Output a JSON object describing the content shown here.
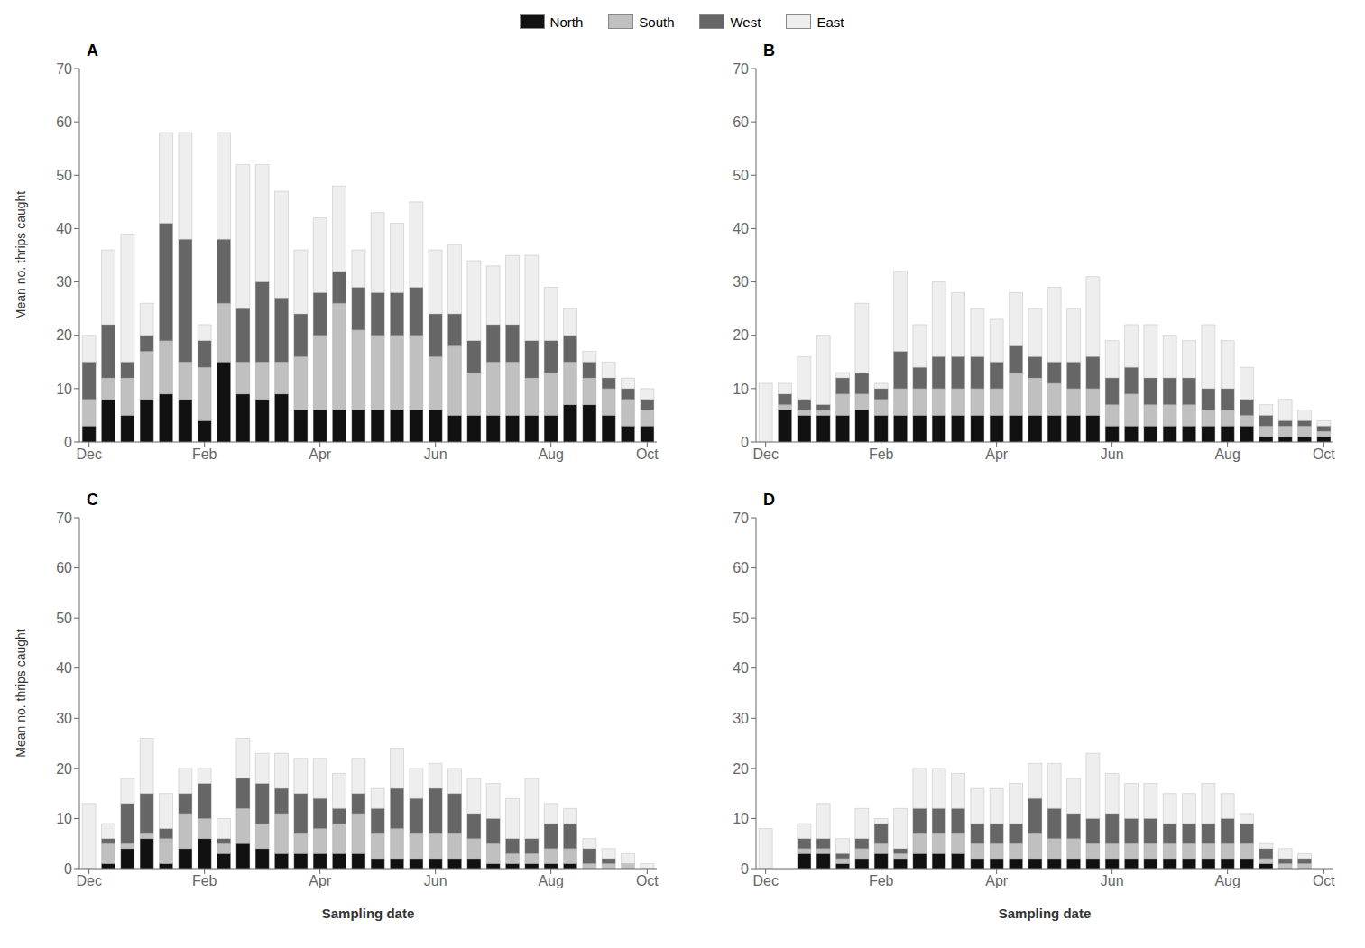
{
  "chart_data": [
    {
      "type": "bar",
      "stacked": true,
      "grid": false,
      "legend": "upper center",
      "annotations": [
        "A"
      ],
      "ylabel": "Mean no. thrips caught",
      "categories": [
        "Dec",
        null,
        null,
        null,
        null,
        null,
        "Feb",
        null,
        null,
        null,
        null,
        null,
        "Apr",
        null,
        null,
        null,
        null,
        null,
        "Jun",
        null,
        null,
        null,
        null,
        null,
        "Aug",
        null,
        null,
        null,
        null,
        "Oct"
      ],
      "ylim": [
        0,
        70
      ],
      "yticks": [
        0,
        10,
        20,
        30,
        40,
        50,
        60,
        70
      ],
      "series": [
        {
          "name": "North",
          "color": "#111111",
          "values": [
            3,
            8,
            5,
            8,
            9,
            8,
            4,
            15,
            9,
            8,
            9,
            6,
            6,
            6,
            6,
            6,
            6,
            6,
            6,
            5,
            5,
            5,
            5,
            5,
            5,
            7,
            7,
            5,
            3,
            3
          ]
        },
        {
          "name": "South",
          "color": "#c0c0c0",
          "values": [
            5,
            4,
            7,
            9,
            10,
            7,
            10,
            11,
            6,
            7,
            6,
            10,
            14,
            20,
            15,
            14,
            14,
            14,
            10,
            13,
            8,
            10,
            10,
            7,
            8,
            8,
            5,
            5,
            5,
            3
          ]
        },
        {
          "name": "West",
          "color": "#666666",
          "values": [
            7,
            10,
            3,
            3,
            22,
            23,
            5,
            12,
            10,
            15,
            12,
            8,
            8,
            6,
            8,
            8,
            8,
            9,
            8,
            6,
            6,
            7,
            7,
            7,
            6,
            5,
            3,
            2,
            2,
            2
          ]
        },
        {
          "name": "East",
          "color": "#eeeeee",
          "values": [
            5,
            14,
            24,
            6,
            17,
            20,
            3,
            20,
            27,
            22,
            20,
            12,
            14,
            16,
            7,
            15,
            13,
            16,
            12,
            13,
            15,
            11,
            13,
            16,
            10,
            5,
            2,
            3,
            2,
            2
          ]
        }
      ]
    },
    {
      "type": "bar",
      "stacked": true,
      "grid": false,
      "annotations": [
        "B"
      ],
      "categories": [
        "Dec",
        null,
        null,
        null,
        null,
        null,
        "Feb",
        null,
        null,
        null,
        null,
        null,
        "Apr",
        null,
        null,
        null,
        null,
        null,
        "Jun",
        null,
        null,
        null,
        null,
        null,
        "Aug",
        null,
        null,
        null,
        null,
        "Oct"
      ],
      "ylim": [
        0,
        70
      ],
      "yticks": [
        0,
        10,
        20,
        30,
        40,
        50,
        60,
        70
      ],
      "series": [
        {
          "name": "North",
          "color": "#111111",
          "values": [
            0,
            6,
            5,
            5,
            5,
            6,
            5,
            5,
            5,
            5,
            5,
            5,
            5,
            5,
            5,
            5,
            5,
            5,
            3,
            3,
            3,
            3,
            3,
            3,
            3,
            3,
            1,
            1,
            1,
            1
          ]
        },
        {
          "name": "South",
          "color": "#c0c0c0",
          "values": [
            0,
            1,
            1,
            1,
            4,
            3,
            3,
            5,
            5,
            5,
            5,
            5,
            5,
            8,
            7,
            6,
            5,
            5,
            4,
            6,
            4,
            4,
            4,
            3,
            3,
            2,
            2,
            2,
            2,
            1
          ]
        },
        {
          "name": "West",
          "color": "#666666",
          "values": [
            0,
            2,
            2,
            1,
            3,
            4,
            2,
            7,
            4,
            6,
            6,
            6,
            5,
            5,
            4,
            4,
            5,
            6,
            5,
            5,
            5,
            5,
            5,
            4,
            4,
            3,
            2,
            1,
            1,
            1
          ]
        },
        {
          "name": "East",
          "color": "#eeeeee",
          "values": [
            11,
            2,
            8,
            13,
            1,
            13,
            1,
            15,
            8,
            14,
            12,
            9,
            8,
            10,
            9,
            14,
            10,
            15,
            7,
            8,
            10,
            8,
            7,
            12,
            9,
            6,
            2,
            4,
            2,
            1
          ]
        }
      ]
    },
    {
      "type": "bar",
      "stacked": true,
      "grid": false,
      "annotations": [
        "C"
      ],
      "ylabel": "Mean no. thrips caught",
      "xlabel": "Sampling date",
      "categories": [
        "Dec",
        null,
        null,
        null,
        null,
        null,
        "Feb",
        null,
        null,
        null,
        null,
        null,
        "Apr",
        null,
        null,
        null,
        null,
        null,
        "Jun",
        null,
        null,
        null,
        null,
        null,
        "Aug",
        null,
        null,
        null,
        null,
        "Oct"
      ],
      "ylim": [
        0,
        70
      ],
      "yticks": [
        0,
        10,
        20,
        30,
        40,
        50,
        60,
        70
      ],
      "series": [
        {
          "name": "North",
          "color": "#111111",
          "values": [
            0,
            1,
            4,
            6,
            1,
            4,
            6,
            3,
            5,
            4,
            3,
            3,
            3,
            3,
            3,
            2,
            2,
            2,
            2,
            2,
            2,
            1,
            1,
            1,
            1,
            1,
            0,
            0,
            0,
            0
          ]
        },
        {
          "name": "South",
          "color": "#c0c0c0",
          "values": [
            0,
            4,
            1,
            1,
            5,
            7,
            4,
            2,
            7,
            5,
            8,
            4,
            5,
            6,
            8,
            5,
            6,
            5,
            5,
            5,
            4,
            4,
            2,
            2,
            3,
            3,
            1,
            1,
            1,
            0
          ]
        },
        {
          "name": "West",
          "color": "#666666",
          "values": [
            0,
            1,
            8,
            8,
            2,
            4,
            7,
            1,
            6,
            8,
            5,
            8,
            6,
            3,
            4,
            5,
            8,
            7,
            9,
            8,
            5,
            5,
            3,
            3,
            5,
            5,
            3,
            1,
            0,
            0
          ]
        },
        {
          "name": "East",
          "color": "#eeeeee",
          "values": [
            13,
            3,
            5,
            11,
            7,
            5,
            3,
            4,
            8,
            6,
            7,
            7,
            8,
            7,
            7,
            4,
            8,
            6,
            5,
            5,
            7,
            7,
            8,
            12,
            4,
            3,
            2,
            2,
            2,
            1
          ]
        }
      ]
    },
    {
      "type": "bar",
      "stacked": true,
      "grid": false,
      "annotations": [
        "D"
      ],
      "xlabel": "Sampling date",
      "categories": [
        "Dec",
        null,
        null,
        null,
        null,
        null,
        "Feb",
        null,
        null,
        null,
        null,
        null,
        "Apr",
        null,
        null,
        null,
        null,
        null,
        "Jun",
        null,
        null,
        null,
        null,
        null,
        "Aug",
        null,
        null,
        null,
        null,
        "Oct"
      ],
      "ylim": [
        0,
        70
      ],
      "yticks": [
        0,
        10,
        20,
        30,
        40,
        50,
        60,
        70
      ],
      "series": [
        {
          "name": "North",
          "color": "#111111",
          "values": [
            0,
            0,
            3,
            3,
            1,
            2,
            3,
            2,
            3,
            3,
            3,
            2,
            2,
            2,
            2,
            2,
            2,
            2,
            2,
            2,
            2,
            2,
            2,
            2,
            2,
            2,
            1,
            0,
            0,
            0
          ]
        },
        {
          "name": "South",
          "color": "#c0c0c0",
          "values": [
            0,
            0,
            1,
            1,
            1,
            2,
            2,
            1,
            4,
            4,
            4,
            3,
            3,
            3,
            5,
            4,
            4,
            3,
            3,
            3,
            3,
            3,
            3,
            3,
            3,
            3,
            1,
            1,
            1,
            0
          ]
        },
        {
          "name": "West",
          "color": "#666666",
          "values": [
            0,
            0,
            2,
            2,
            1,
            2,
            4,
            1,
            5,
            5,
            5,
            4,
            4,
            4,
            7,
            6,
            5,
            5,
            6,
            5,
            5,
            4,
            4,
            4,
            5,
            4,
            2,
            1,
            1,
            0
          ]
        },
        {
          "name": "East",
          "color": "#eeeeee",
          "values": [
            8,
            0,
            3,
            7,
            3,
            6,
            1,
            8,
            8,
            8,
            7,
            7,
            7,
            8,
            7,
            9,
            7,
            13,
            8,
            7,
            7,
            6,
            6,
            8,
            5,
            2,
            1,
            2,
            1,
            0
          ]
        }
      ]
    }
  ]
}
